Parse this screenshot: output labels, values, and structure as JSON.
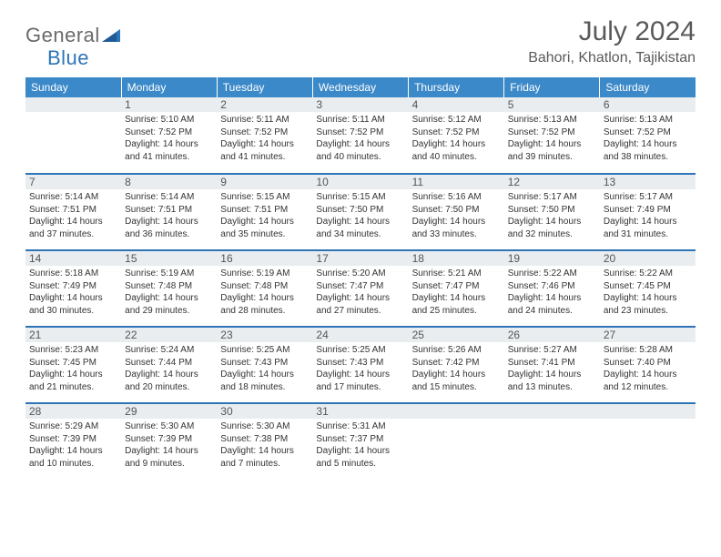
{
  "logo": {
    "word1": "General",
    "word2": "Blue"
  },
  "title": "July 2024",
  "location": "Bahori, Khatlon, Tajikistan",
  "colors": {
    "header_bg": "#3b89c9",
    "header_text": "#ffffff",
    "daynum_bg": "#e9edef",
    "border": "#2d74b8",
    "title_color": "#5a5a5a",
    "logo_gray": "#6a6a6a",
    "logo_blue": "#2d74b8",
    "body_text": "#333333"
  },
  "weekdays": [
    "Sunday",
    "Monday",
    "Tuesday",
    "Wednesday",
    "Thursday",
    "Friday",
    "Saturday"
  ],
  "weeks": [
    [
      null,
      {
        "n": "1",
        "sr": "5:10 AM",
        "ss": "7:52 PM",
        "dl": "14 hours and 41 minutes."
      },
      {
        "n": "2",
        "sr": "5:11 AM",
        "ss": "7:52 PM",
        "dl": "14 hours and 41 minutes."
      },
      {
        "n": "3",
        "sr": "5:11 AM",
        "ss": "7:52 PM",
        "dl": "14 hours and 40 minutes."
      },
      {
        "n": "4",
        "sr": "5:12 AM",
        "ss": "7:52 PM",
        "dl": "14 hours and 40 minutes."
      },
      {
        "n": "5",
        "sr": "5:13 AM",
        "ss": "7:52 PM",
        "dl": "14 hours and 39 minutes."
      },
      {
        "n": "6",
        "sr": "5:13 AM",
        "ss": "7:52 PM",
        "dl": "14 hours and 38 minutes."
      }
    ],
    [
      {
        "n": "7",
        "sr": "5:14 AM",
        "ss": "7:51 PM",
        "dl": "14 hours and 37 minutes."
      },
      {
        "n": "8",
        "sr": "5:14 AM",
        "ss": "7:51 PM",
        "dl": "14 hours and 36 minutes."
      },
      {
        "n": "9",
        "sr": "5:15 AM",
        "ss": "7:51 PM",
        "dl": "14 hours and 35 minutes."
      },
      {
        "n": "10",
        "sr": "5:15 AM",
        "ss": "7:50 PM",
        "dl": "14 hours and 34 minutes."
      },
      {
        "n": "11",
        "sr": "5:16 AM",
        "ss": "7:50 PM",
        "dl": "14 hours and 33 minutes."
      },
      {
        "n": "12",
        "sr": "5:17 AM",
        "ss": "7:50 PM",
        "dl": "14 hours and 32 minutes."
      },
      {
        "n": "13",
        "sr": "5:17 AM",
        "ss": "7:49 PM",
        "dl": "14 hours and 31 minutes."
      }
    ],
    [
      {
        "n": "14",
        "sr": "5:18 AM",
        "ss": "7:49 PM",
        "dl": "14 hours and 30 minutes."
      },
      {
        "n": "15",
        "sr": "5:19 AM",
        "ss": "7:48 PM",
        "dl": "14 hours and 29 minutes."
      },
      {
        "n": "16",
        "sr": "5:19 AM",
        "ss": "7:48 PM",
        "dl": "14 hours and 28 minutes."
      },
      {
        "n": "17",
        "sr": "5:20 AM",
        "ss": "7:47 PM",
        "dl": "14 hours and 27 minutes."
      },
      {
        "n": "18",
        "sr": "5:21 AM",
        "ss": "7:47 PM",
        "dl": "14 hours and 25 minutes."
      },
      {
        "n": "19",
        "sr": "5:22 AM",
        "ss": "7:46 PM",
        "dl": "14 hours and 24 minutes."
      },
      {
        "n": "20",
        "sr": "5:22 AM",
        "ss": "7:45 PM",
        "dl": "14 hours and 23 minutes."
      }
    ],
    [
      {
        "n": "21",
        "sr": "5:23 AM",
        "ss": "7:45 PM",
        "dl": "14 hours and 21 minutes."
      },
      {
        "n": "22",
        "sr": "5:24 AM",
        "ss": "7:44 PM",
        "dl": "14 hours and 20 minutes."
      },
      {
        "n": "23",
        "sr": "5:25 AM",
        "ss": "7:43 PM",
        "dl": "14 hours and 18 minutes."
      },
      {
        "n": "24",
        "sr": "5:25 AM",
        "ss": "7:43 PM",
        "dl": "14 hours and 17 minutes."
      },
      {
        "n": "25",
        "sr": "5:26 AM",
        "ss": "7:42 PM",
        "dl": "14 hours and 15 minutes."
      },
      {
        "n": "26",
        "sr": "5:27 AM",
        "ss": "7:41 PM",
        "dl": "14 hours and 13 minutes."
      },
      {
        "n": "27",
        "sr": "5:28 AM",
        "ss": "7:40 PM",
        "dl": "14 hours and 12 minutes."
      }
    ],
    [
      {
        "n": "28",
        "sr": "5:29 AM",
        "ss": "7:39 PM",
        "dl": "14 hours and 10 minutes."
      },
      {
        "n": "29",
        "sr": "5:30 AM",
        "ss": "7:39 PM",
        "dl": "14 hours and 9 minutes."
      },
      {
        "n": "30",
        "sr": "5:30 AM",
        "ss": "7:38 PM",
        "dl": "14 hours and 7 minutes."
      },
      {
        "n": "31",
        "sr": "5:31 AM",
        "ss": "7:37 PM",
        "dl": "14 hours and 5 minutes."
      },
      null,
      null,
      null
    ]
  ],
  "labels": {
    "sunrise": "Sunrise:",
    "sunset": "Sunset:",
    "daylight": "Daylight:"
  }
}
